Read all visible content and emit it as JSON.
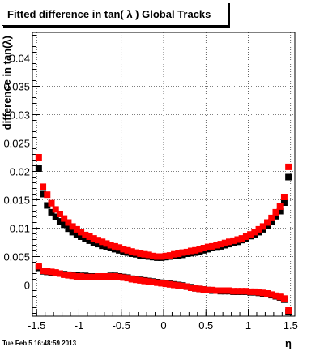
{
  "title": "Fitted difference in tan( λ )  Global Tracks",
  "timestamp": "Tue Feb  5 16:48:59 2013",
  "chart_data": {
    "type": "scatter",
    "title": "Fitted difference in tan( λ )  Global Tracks",
    "xlabel": "η",
    "ylabel": "difference in tan(λ)",
    "xlim": [
      -1.55,
      1.55
    ],
    "ylim": [
      -0.0055,
      0.0445
    ],
    "xticks": [
      -1.5,
      -1,
      -0.5,
      0,
      0.5,
      1,
      1.5
    ],
    "xtick_labels": [
      "-1.5",
      "-1",
      "-0.5",
      "0",
      "0.5",
      "1",
      "1.5"
    ],
    "yticks": [
      0,
      0.005,
      0.01,
      0.015,
      0.02,
      0.025,
      0.03,
      0.035,
      0.04
    ],
    "ytick_labels": [
      "0",
      "0.005",
      "0.01",
      "0.015",
      "0.02",
      "0.025",
      "0.03",
      "0.035",
      "0.04"
    ],
    "grid": true,
    "series_colors": [
      "#000000",
      "#ff0000"
    ],
    "series": [
      {
        "color": "#000000",
        "marker": "square",
        "x": [
          -1.475,
          -1.425,
          -1.375,
          -1.325,
          -1.275,
          -1.225,
          -1.175,
          -1.125,
          -1.075,
          -1.025,
          -0.975,
          -0.925,
          -0.875,
          -0.825,
          -0.775,
          -0.725,
          -0.675,
          -0.625,
          -0.575,
          -0.525,
          -0.475,
          -0.425,
          -0.375,
          -0.325,
          -0.275,
          -0.225,
          -0.175,
          -0.125,
          -0.075,
          -0.025,
          0.025,
          0.075,
          0.125,
          0.175,
          0.225,
          0.275,
          0.325,
          0.375,
          0.425,
          0.475,
          0.525,
          0.575,
          0.625,
          0.675,
          0.725,
          0.775,
          0.825,
          0.875,
          0.925,
          0.975,
          1.025,
          1.075,
          1.125,
          1.175,
          1.225,
          1.275,
          1.325,
          1.375,
          1.425,
          1.475
        ],
        "y": [
          0.0205,
          0.016,
          0.014,
          0.0128,
          0.012,
          0.0112,
          0.0106,
          0.0099,
          0.0093,
          0.0088,
          0.0085,
          0.0081,
          0.0078,
          0.0075,
          0.0072,
          0.0069,
          0.0067,
          0.0065,
          0.0063,
          0.0061,
          0.0059,
          0.0057,
          0.0055,
          0.0054,
          0.0052,
          0.0051,
          0.005,
          0.0049,
          0.0048,
          0.0048,
          0.0049,
          0.005,
          0.0051,
          0.0052,
          0.0053,
          0.0055,
          0.0056,
          0.0057,
          0.0059,
          0.0061,
          0.0063,
          0.0065,
          0.0066,
          0.0068,
          0.007,
          0.0072,
          0.0074,
          0.0076,
          0.0079,
          0.0082,
          0.0086,
          0.0089,
          0.0093,
          0.0098,
          0.0104,
          0.0111,
          0.0121,
          0.013,
          0.0145,
          0.019
        ]
      },
      {
        "color": "#000000",
        "marker": "square",
        "x": [
          -1.475,
          -1.425,
          -1.375,
          -1.325,
          -1.275,
          -1.225,
          -1.175,
          -1.125,
          -1.075,
          -1.025,
          -0.975,
          -0.925,
          -0.875,
          -0.825,
          -0.775,
          -0.725,
          -0.675,
          -0.625,
          -0.575,
          -0.525,
          -0.475,
          -0.425,
          -0.375,
          -0.325,
          -0.275,
          -0.225,
          -0.175,
          -0.125,
          -0.075,
          -0.025,
          0.025,
          0.075,
          0.125,
          0.175,
          0.225,
          0.275,
          0.325,
          0.375,
          0.425,
          0.475,
          0.525,
          0.575,
          0.625,
          0.675,
          0.725,
          0.775,
          0.825,
          0.875,
          0.925,
          0.975,
          1.025,
          1.075,
          1.125,
          1.175,
          1.225,
          1.275,
          1.325,
          1.375,
          1.425,
          1.475
        ],
        "y": [
          0.003,
          0.0024,
          0.0023,
          0.0022,
          0.0021,
          0.002,
          0.0019,
          0.0018,
          0.0017,
          0.0017,
          0.0016,
          0.0016,
          0.0015,
          0.0015,
          0.0015,
          0.0015,
          0.0015,
          0.0016,
          0.0016,
          0.0015,
          0.0014,
          0.0013,
          0.0011,
          0.001,
          0.0009,
          0.0008,
          0.0007,
          0.0006,
          0.0005,
          0.0004,
          0.0003,
          0.0002,
          0.0001,
          0.0,
          -0.0001,
          -0.0003,
          -0.0004,
          -0.0006,
          -0.0007,
          -0.0008,
          -0.0009,
          -0.001,
          -0.001,
          -0.0011,
          -0.0011,
          -0.0011,
          -0.0012,
          -0.0012,
          -0.0012,
          -0.0012,
          -0.0013,
          -0.0013,
          -0.0014,
          -0.0015,
          -0.0016,
          -0.0018,
          -0.002,
          -0.0022,
          -0.0026,
          -0.0048
        ]
      },
      {
        "color": "#ff0000",
        "marker": "square",
        "x": [
          -1.475,
          -1.425,
          -1.375,
          -1.325,
          -1.275,
          -1.225,
          -1.175,
          -1.125,
          -1.075,
          -1.025,
          -0.975,
          -0.925,
          -0.875,
          -0.825,
          -0.775,
          -0.725,
          -0.675,
          -0.625,
          -0.575,
          -0.525,
          -0.475,
          -0.425,
          -0.375,
          -0.325,
          -0.275,
          -0.225,
          -0.175,
          -0.125,
          -0.075,
          -0.025,
          0.025,
          0.075,
          0.125,
          0.175,
          0.225,
          0.275,
          0.325,
          0.375,
          0.425,
          0.475,
          0.525,
          0.575,
          0.625,
          0.675,
          0.725,
          0.775,
          0.825,
          0.875,
          0.925,
          0.975,
          1.025,
          1.075,
          1.125,
          1.175,
          1.225,
          1.275,
          1.325,
          1.375,
          1.425,
          1.475
        ],
        "y": [
          0.0225,
          0.0173,
          0.0159,
          0.0144,
          0.0133,
          0.0125,
          0.0117,
          0.011,
          0.0103,
          0.0098,
          0.0093,
          0.0088,
          0.0085,
          0.0082,
          0.0079,
          0.0076,
          0.0073,
          0.007,
          0.0068,
          0.0066,
          0.0063,
          0.0061,
          0.0059,
          0.0057,
          0.0055,
          0.0054,
          0.0053,
          0.0051,
          0.005,
          0.005,
          0.0051,
          0.0052,
          0.0054,
          0.0055,
          0.0057,
          0.0058,
          0.006,
          0.0061,
          0.0063,
          0.0065,
          0.0067,
          0.0068,
          0.007,
          0.0072,
          0.0074,
          0.0076,
          0.0078,
          0.008,
          0.0082,
          0.0085,
          0.0089,
          0.0093,
          0.0098,
          0.0103,
          0.011,
          0.0118,
          0.0128,
          0.0138,
          0.0155,
          0.0208
        ]
      },
      {
        "color": "#ff0000",
        "marker": "square",
        "x": [
          -1.475,
          -1.425,
          -1.375,
          -1.325,
          -1.275,
          -1.225,
          -1.175,
          -1.125,
          -1.075,
          -1.025,
          -0.975,
          -0.925,
          -0.875,
          -0.825,
          -0.775,
          -0.725,
          -0.675,
          -0.625,
          -0.575,
          -0.525,
          -0.475,
          -0.425,
          -0.375,
          -0.325,
          -0.275,
          -0.225,
          -0.175,
          -0.125,
          -0.075,
          -0.025,
          0.025,
          0.075,
          0.125,
          0.175,
          0.225,
          0.275,
          0.325,
          0.375,
          0.425,
          0.475,
          0.525,
          0.575,
          0.625,
          0.675,
          0.725,
          0.775,
          0.825,
          0.875,
          0.925,
          0.975,
          1.025,
          1.075,
          1.125,
          1.175,
          1.225,
          1.275,
          1.325,
          1.375,
          1.425,
          1.475
        ],
        "y": [
          0.0033,
          0.0025,
          0.0024,
          0.0023,
          0.0022,
          0.002,
          0.0018,
          0.0017,
          0.0016,
          0.0015,
          0.0015,
          0.0014,
          0.0014,
          0.0014,
          0.0015,
          0.0015,
          0.0015,
          0.0015,
          0.0015,
          0.0014,
          0.0013,
          0.0012,
          0.001,
          0.0009,
          0.0008,
          0.0007,
          0.0006,
          0.0005,
          0.0004,
          0.0003,
          0.0002,
          0.0001,
          0.0,
          -0.0001,
          -0.0002,
          -0.0003,
          -0.0005,
          -0.0006,
          -0.0007,
          -0.0008,
          -0.0009,
          -0.0009,
          -0.001,
          -0.001,
          -0.001,
          -0.001,
          -0.0011,
          -0.0011,
          -0.0011,
          -0.0011,
          -0.0012,
          -0.0012,
          -0.0013,
          -0.0014,
          -0.0015,
          -0.0017,
          -0.0019,
          -0.0021,
          -0.0024,
          -0.0045
        ]
      }
    ]
  }
}
